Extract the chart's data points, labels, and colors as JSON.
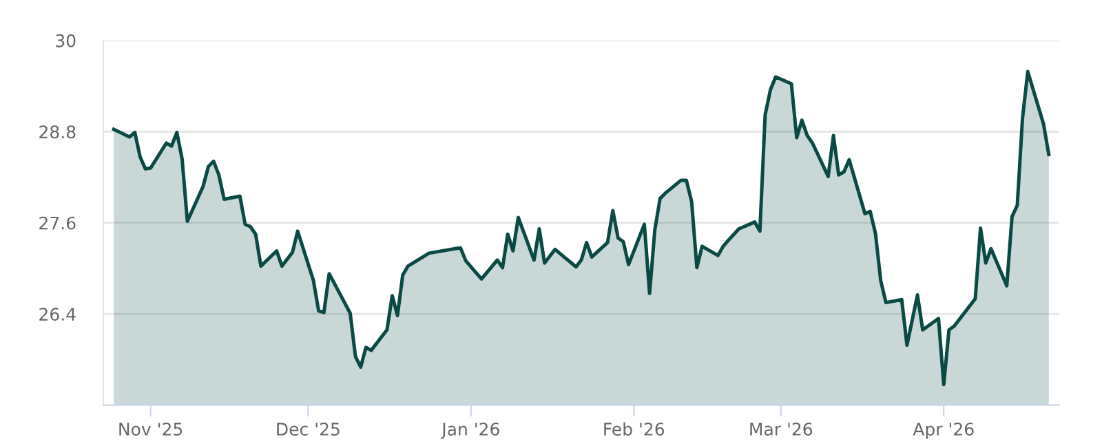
{
  "chart_data": {
    "type": "area",
    "x": [
      "2025-10-25",
      "2025-10-28",
      "2025-10-29",
      "2025-10-30",
      "2025-10-31",
      "2025-11-01",
      "2025-11-04",
      "2025-11-05",
      "2025-11-06",
      "2025-11-07",
      "2025-11-08",
      "2025-11-11",
      "2025-11-12",
      "2025-11-13",
      "2025-11-14",
      "2025-11-15",
      "2025-11-18",
      "2025-11-19",
      "2025-11-20",
      "2025-11-21",
      "2025-11-22",
      "2025-11-25",
      "2025-11-26",
      "2025-11-28",
      "2025-11-29",
      "2025-12-02",
      "2025-12-03",
      "2025-12-04",
      "2025-12-05",
      "2025-12-09",
      "2025-12-10",
      "2025-12-11",
      "2025-12-12",
      "2025-12-13",
      "2025-12-16",
      "2025-12-17",
      "2025-12-18",
      "2025-12-19",
      "2025-12-20",
      "2025-12-24",
      "2025-12-29",
      "2025-12-30",
      "2025-12-31",
      "2026-01-03",
      "2026-01-06",
      "2026-01-07",
      "2026-01-08",
      "2026-01-09",
      "2026-01-10",
      "2026-01-13",
      "2026-01-14",
      "2026-01-15",
      "2026-01-17",
      "2026-01-21",
      "2026-01-22",
      "2026-01-23",
      "2026-01-24",
      "2026-01-27",
      "2026-01-28",
      "2026-01-29",
      "2026-01-30",
      "2026-01-31",
      "2026-02-03",
      "2026-02-04",
      "2026-02-05",
      "2026-02-06",
      "2026-02-07",
      "2026-02-10",
      "2026-02-11",
      "2026-02-12",
      "2026-02-13",
      "2026-02-14",
      "2026-02-17",
      "2026-02-18",
      "2026-02-19",
      "2026-02-21",
      "2026-02-24",
      "2026-02-25",
      "2026-02-26",
      "2026-02-27",
      "2026-02-28",
      "2026-03-03",
      "2026-03-04",
      "2026-03-05",
      "2026-03-06",
      "2026-03-07",
      "2026-03-10",
      "2026-03-11",
      "2026-03-12",
      "2026-03-13",
      "2026-03-14",
      "2026-03-17",
      "2026-03-18",
      "2026-03-19",
      "2026-03-20",
      "2026-03-21",
      "2026-03-24",
      "2026-03-25",
      "2026-03-27",
      "2026-03-28",
      "2026-03-31",
      "2026-04-01",
      "2026-04-02",
      "2026-04-03",
      "2026-04-07",
      "2026-04-08",
      "2026-04-09",
      "2026-04-10",
      "2026-04-13",
      "2026-04-14",
      "2026-04-15",
      "2026-04-16",
      "2026-04-17",
      "2026-04-20",
      "2026-04-21"
    ],
    "series": [
      {
        "color": "#0b4a44",
        "values": [
          28.83,
          28.73,
          28.79,
          28.47,
          28.31,
          28.32,
          28.65,
          28.61,
          28.79,
          28.44,
          27.62,
          28.08,
          28.34,
          28.41,
          28.23,
          27.91,
          27.95,
          27.58,
          27.55,
          27.45,
          27.03,
          27.23,
          27.03,
          27.21,
          27.49,
          26.84,
          26.44,
          26.42,
          26.93,
          26.41,
          25.84,
          25.7,
          25.96,
          25.92,
          26.19,
          26.64,
          26.38,
          26.91,
          27.03,
          27.2,
          27.26,
          27.27,
          27.1,
          26.86,
          27.11,
          27.01,
          27.45,
          27.23,
          27.67,
          27.11,
          27.52,
          27.07,
          27.25,
          27.02,
          27.11,
          27.34,
          27.15,
          27.34,
          27.76,
          27.4,
          27.35,
          27.05,
          27.58,
          26.67,
          27.51,
          27.92,
          27.99,
          28.16,
          28.16,
          27.88,
          27.01,
          27.29,
          27.17,
          27.29,
          27.37,
          27.52,
          27.61,
          27.49,
          29.02,
          29.35,
          29.52,
          29.43,
          28.72,
          28.95,
          28.75,
          28.65,
          28.21,
          28.75,
          28.23,
          28.27,
          28.43,
          27.72,
          27.75,
          27.46,
          26.84,
          26.55,
          26.59,
          25.99,
          26.65,
          26.19,
          26.34,
          25.47,
          26.19,
          26.24,
          26.6,
          27.53,
          27.07,
          27.26,
          26.77,
          27.68,
          27.83,
          28.98,
          29.59,
          28.9,
          28.5
        ]
      }
    ],
    "xlim": [
      "2025-10-23",
      "2026-04-23"
    ],
    "xticks": [
      {
        "value": "2025-11-01",
        "label": "Nov '25"
      },
      {
        "value": "2025-12-01",
        "label": "Dec '25"
      },
      {
        "value": "2026-01-01",
        "label": "Jan '26"
      },
      {
        "value": "2026-02-01",
        "label": "Feb '26"
      },
      {
        "value": "2026-03-01",
        "label": "Mar '26"
      },
      {
        "value": "2026-04-01",
        "label": "Apr '26"
      }
    ],
    "ylim": [
      25.2,
      30
    ],
    "yticks": [
      26.4,
      27.6,
      28.8,
      30
    ],
    "grid": "y"
  }
}
